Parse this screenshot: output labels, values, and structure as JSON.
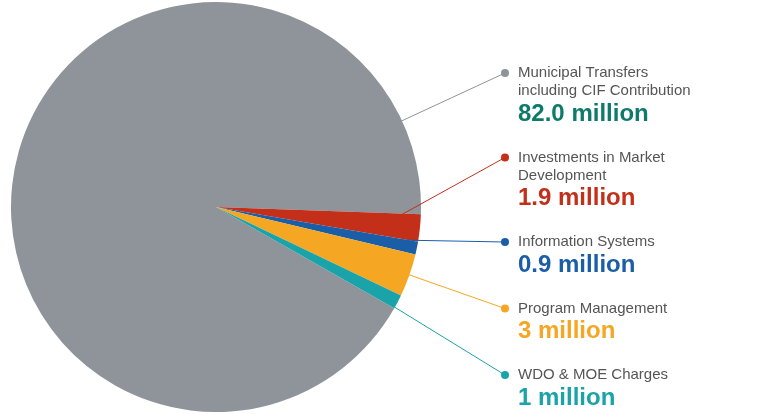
{
  "chart_data": {
    "type": "pie",
    "categories": [
      "Municipal Transfers including CIF Contribution",
      "Investments in Market Development",
      "Information Systems",
      "Program Management",
      "WDO & MOE Charges"
    ],
    "values": [
      82.0,
      1.9,
      0.9,
      3,
      1
    ],
    "value_labels": [
      "82.0 million",
      "1.9 million",
      "0.9 million",
      "3 million",
      "1 million"
    ],
    "colors": [
      "#8e9499",
      "#c42f1a",
      "#1b5ea8",
      "#f5a623",
      "#1aa3a8"
    ],
    "data_labels": true
  }
}
